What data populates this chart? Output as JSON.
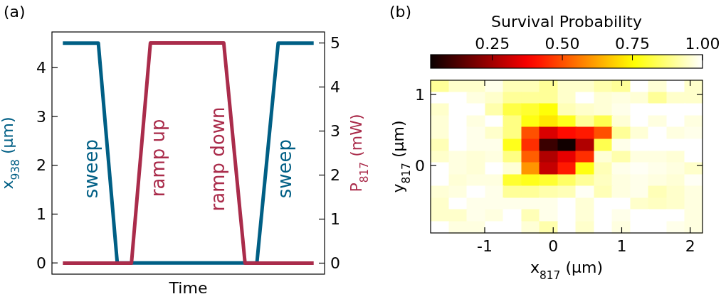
{
  "chart_data": [
    {
      "type": "line",
      "title": "(a)",
      "xlabel": "Time",
      "ylabel": "x$_{938}$ (μm)",
      "y2label": "P$_{817}$ (mW)",
      "categories": [
        null,
        null,
        null,
        null,
        null,
        null,
        null,
        null,
        null,
        null,
        null,
        null,
        null,
        null,
        null,
        null,
        null,
        null,
        null,
        null,
        null,
        null,
        null,
        null,
        null,
        null,
        null,
        null,
        null,
        null,
        null,
        null,
        null,
        null,
        null,
        null,
        null,
        null,
        null,
        null,
        null,
        null,
        null,
        null,
        null,
        null,
        null,
        null,
        null,
        null,
        null,
        null,
        null,
        null,
        null,
        null,
        null,
        null,
        null,
        null,
        null,
        null,
        null,
        null,
        null,
        null,
        null,
        null,
        null,
        null,
        null,
        null,
        null,
        null,
        null,
        null,
        null,
        null,
        null,
        null,
        null,
        null,
        null,
        null,
        null,
        null,
        null,
        null,
        null,
        null,
        null,
        null,
        null,
        null,
        null,
        null,
        null,
        null,
        null,
        null,
        null,
        null,
        null,
        null,
        null,
        null,
        null
      ],
      "ylim": [
        -0.23,
        4.73
      ],
      "yticks": [
        0,
        1,
        2,
        3,
        4
      ],
      "y2lim": [
        -0.25,
        5.25
      ],
      "y2ticks": [
        0,
        1,
        2,
        3,
        4,
        5
      ],
      "line_style": "solid",
      "tick_labels": "y",
      "series": [
        {
          "color": "#005f85",
          "values": [
            4.5,
            4.5,
            4.5,
            4.5,
            4.5,
            4.5,
            4.5,
            4.5,
            4.5,
            4.5,
            4.5,
            4.5,
            4.5,
            4.5,
            4.5,
            4.5,
            3.94,
            3.38,
            2.81,
            2.25,
            1.69,
            1.13,
            0.56,
            0,
            0,
            0,
            0,
            0,
            0,
            0,
            0,
            0,
            0,
            0,
            0,
            0,
            0,
            0,
            0,
            0,
            0,
            0,
            0,
            0,
            0,
            0,
            0,
            0,
            0,
            0,
            0,
            0,
            0,
            0,
            0,
            0,
            0,
            0,
            0,
            0,
            0,
            0,
            0,
            0,
            0,
            0,
            0,
            0,
            0,
            0,
            0,
            0,
            0,
            0,
            0,
            0,
            0,
            0,
            0,
            0,
            0,
            0,
            0,
            0.5,
            1,
            1.5,
            2,
            2.5,
            3,
            3.5,
            4,
            4.5,
            4.5,
            4.5,
            4.5,
            4.5,
            4.5,
            4.5,
            4.5,
            4.5,
            4.5,
            4.5,
            4.5,
            4.5,
            4.5,
            4.5,
            4.5
          ]
        },
        {
          "color": "#aa2c4b",
          "axis": "y2",
          "values": [
            0,
            0,
            0,
            0,
            0,
            0,
            0,
            0,
            0,
            0,
            0,
            0,
            0,
            0,
            0,
            0,
            0,
            0,
            0,
            0,
            0,
            0,
            0,
            0,
            0,
            0,
            0,
            0,
            0,
            0,
            0.63,
            1.25,
            1.88,
            2.5,
            3.13,
            3.75,
            4.38,
            5,
            5,
            5,
            5,
            5,
            5,
            5,
            5,
            5,
            5,
            5,
            5,
            5,
            5,
            5,
            5,
            5,
            5,
            5,
            5,
            5,
            5,
            5,
            5,
            5,
            5,
            5,
            5,
            5,
            5,
            5,
            5,
            4.44,
            3.89,
            3.33,
            2.78,
            2.22,
            1.67,
            1.11,
            0.56,
            0,
            0,
            0,
            0,
            0,
            0,
            0,
            0,
            0,
            0,
            0,
            0,
            0,
            0,
            0,
            0,
            0,
            0,
            0,
            0,
            0,
            0,
            0,
            0,
            0,
            0,
            0,
            0,
            0,
            0
          ]
        }
      ],
      "annotations": [
        "sweep",
        "ramp up",
        "ramp down",
        "sweep"
      ]
    },
    {
      "type": "heatmap",
      "title": "(b)",
      "xlabel": "x$_{817}$ (μm)",
      "ylabel": "y$_{817}$ (μm)",
      "clabel": "Survival Probability",
      "xlim": [
        -1.79,
        2.18
      ],
      "xticks": [
        -1,
        0,
        1,
        2
      ],
      "ylim": [
        -0.95,
        1.2
      ],
      "yticks": [
        0,
        1
      ],
      "clim": [
        0.03,
        1
      ],
      "cticks": [
        0.25,
        {
          "value": 0.5,
          "label": "0.50"
        },
        0.75,
        {
          "value": 1,
          "label": "1.00"
        }
      ],
      "x": [
        -1.66,
        -1.39,
        -1.13,
        -0.86,
        -0.6,
        -0.33,
        -0.07,
        0.2,
        0.46,
        0.73,
        0.99,
        1.26,
        1.52,
        1.79,
        2.05
      ],
      "y": [
        1.12,
        0.95,
        0.79,
        0.62,
        0.46,
        0.29,
        0.12,
        -0.04,
        -0.21,
        -0.37,
        -0.54,
        -0.7,
        -0.87
      ],
      "cells": [
        [
          0.9,
          0.95,
          0.95,
          0.98,
          0.93,
          0.93,
          0.9,
          0.95,
          0.95,
          0.92,
          0.9,
          1.0,
          0.96,
          1.0,
          0.95
        ],
        [
          1.0,
          1.0,
          0.97,
          0.95,
          0.9,
          0.9,
          0.9,
          0.95,
          1.0,
          0.96,
          0.97,
          0.96,
          0.9,
          0.95,
          0.95
        ],
        [
          0.95,
          1.0,
          1.0,
          0.92,
          0.82,
          0.8,
          0.76,
          0.93,
          0.95,
          0.96,
          0.98,
          1.0,
          1.0,
          1.0,
          1.0
        ],
        [
          0.96,
          1.0,
          0.97,
          1.0,
          0.88,
          0.77,
          0.72,
          0.78,
          0.9,
          0.83,
          0.96,
          1.0,
          0.97,
          1.0,
          0.97
        ],
        [
          0.96,
          1.0,
          0.98,
          0.95,
          0.88,
          0.5,
          0.33,
          0.4,
          0.42,
          0.5,
          0.9,
          0.96,
          1.0,
          0.97,
          0.98
        ],
        [
          0.93,
          1.0,
          0.98,
          0.98,
          0.78,
          0.45,
          0.1,
          0.04,
          0.27,
          0.83,
          0.98,
          1.0,
          1.0,
          1.0,
          1.0
        ],
        [
          0.95,
          0.97,
          0.96,
          0.97,
          0.88,
          0.52,
          0.27,
          0.35,
          0.45,
          0.96,
          0.92,
          0.97,
          0.97,
          0.96,
          1.0
        ],
        [
          1.0,
          0.97,
          0.96,
          1.0,
          0.96,
          0.6,
          0.3,
          0.42,
          0.77,
          0.93,
          0.98,
          0.99,
          0.98,
          0.97,
          0.95
        ],
        [
          1.0,
          0.96,
          0.97,
          0.97,
          0.8,
          0.78,
          0.8,
          0.85,
          0.9,
          0.94,
          0.97,
          0.98,
          0.97,
          0.96,
          0.99
        ],
        [
          0.96,
          0.97,
          1.0,
          0.98,
          0.9,
          0.9,
          0.92,
          0.93,
          0.99,
          0.93,
          0.97,
          0.98,
          0.93,
          0.95,
          0.97
        ],
        [
          0.95,
          1.0,
          0.98,
          0.98,
          0.98,
          0.98,
          0.98,
          1.0,
          0.96,
          1.0,
          1.0,
          0.95,
          0.94,
          0.95,
          0.97
        ],
        [
          0.95,
          0.95,
          0.98,
          0.97,
          1.0,
          0.93,
          0.98,
          1.0,
          0.96,
          1.0,
          0.98,
          1.0,
          1.0,
          1.0,
          0.97
        ],
        [
          1.0,
          0.97,
          0.97,
          1.0,
          1.0,
          0.96,
          0.92,
          1.0,
          0.95,
          1.0,
          0.97,
          1.0,
          1.0,
          0.98,
          0.97
        ]
      ]
    }
  ]
}
